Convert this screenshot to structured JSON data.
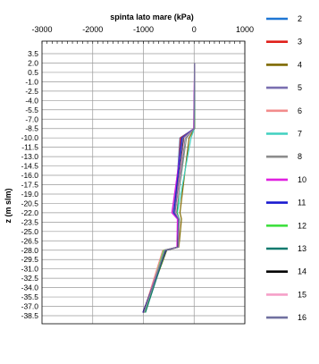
{
  "chart_data": {
    "type": "line",
    "title": "spinta lato mare (kPa)",
    "xlabel": "spinta lato mare (kPa)",
    "ylabel": "z   (m slm)",
    "xlim": [
      -3000,
      1000
    ],
    "ylim": [
      -38.5,
      3.5
    ],
    "x_axis_position": "top",
    "y_inverted": true,
    "grid": true,
    "x_ticks": [
      -3000,
      -2000,
      -1000,
      0,
      1000
    ],
    "x_tick_labels": [
      "-3000",
      "-2000",
      "-1000",
      "0",
      "1000"
    ],
    "y_ticks": [
      3.5,
      2.0,
      0.5,
      -1.0,
      -2.5,
      -4.0,
      -5.5,
      -7.0,
      -8.5,
      -10.0,
      -11.5,
      -13.0,
      -14.5,
      -16.0,
      -17.5,
      -19.0,
      -20.5,
      -22.0,
      -23.5,
      -25.0,
      -26.5,
      -28.0,
      -29.5,
      -31.0,
      -32.5,
      -34.0,
      -35.5,
      -37.0,
      -38.5
    ],
    "y_tick_labels": [
      "3.5",
      "2.0",
      "0.5",
      "-1.0",
      "-2.5",
      "-4.0",
      "-5.5",
      "-7.0",
      "-8.5",
      "-10.0",
      "-11.5",
      "-13.0",
      "-14.5",
      "-16.0",
      "-17.5",
      "-19.0",
      "-20.5",
      "-22.0",
      "-23.5",
      "-25.0",
      "-26.5",
      "-28.0",
      "-29.5",
      "-31.0",
      "-32.5",
      "-34.0",
      "-35.5",
      "-37.0",
      "-38.5"
    ],
    "legend_position": "right",
    "series": [
      {
        "name": "2",
        "color": "#1f77d4",
        "points": [
          [
            10,
            2.0
          ],
          [
            0,
            -8.5
          ],
          [
            -280,
            -10.0
          ],
          [
            -380,
            -22.0
          ],
          [
            -300,
            -23.0
          ],
          [
            -320,
            -27.5
          ],
          [
            -550,
            -28.0
          ],
          [
            -1000,
            -38.0
          ]
        ]
      },
      {
        "name": "3",
        "color": "#e0201b",
        "points": [
          [
            10,
            2.0
          ],
          [
            5,
            -8.5
          ],
          [
            -270,
            -10.0
          ],
          [
            -370,
            -22.0
          ],
          [
            -290,
            -23.0
          ],
          [
            -310,
            -27.5
          ],
          [
            -560,
            -28.0
          ],
          [
            -1010,
            -38.0
          ]
        ]
      },
      {
        "name": "4",
        "color": "#7f6a00",
        "points": [
          [
            10,
            2.0
          ],
          [
            10,
            -8.5
          ],
          [
            -100,
            -10.0
          ],
          [
            -280,
            -22.0
          ],
          [
            -250,
            -23.0
          ],
          [
            -300,
            -27.5
          ],
          [
            -540,
            -28.0
          ],
          [
            -990,
            -38.0
          ]
        ]
      },
      {
        "name": "5",
        "color": "#7a6fb0",
        "points": [
          [
            10,
            2.0
          ],
          [
            -5,
            -8.5
          ],
          [
            -250,
            -10.0
          ],
          [
            -420,
            -22.0
          ],
          [
            -320,
            -23.0
          ],
          [
            -330,
            -27.5
          ],
          [
            -560,
            -28.0
          ],
          [
            -1000,
            -38.0
          ]
        ]
      },
      {
        "name": "6",
        "color": "#f28c8c",
        "points": [
          [
            10,
            2.0
          ],
          [
            0,
            -8.5
          ],
          [
            -200,
            -10.0
          ],
          [
            -350,
            -22.0
          ],
          [
            -300,
            -23.0
          ],
          [
            -310,
            -27.5
          ],
          [
            -620,
            -28.0
          ],
          [
            -1000,
            -38.0
          ]
        ]
      },
      {
        "name": "7",
        "color": "#40d0c0",
        "points": [
          [
            10,
            2.0
          ],
          [
            5,
            -8.5
          ],
          [
            -60,
            -10.0
          ],
          [
            -330,
            -22.0
          ],
          [
            -290,
            -23.0
          ],
          [
            -320,
            -27.5
          ],
          [
            -590,
            -28.0
          ],
          [
            -980,
            -38.0
          ]
        ]
      },
      {
        "name": "8",
        "color": "#8c8c8c",
        "points": [
          [
            10,
            2.0
          ],
          [
            0,
            -8.5
          ],
          [
            -150,
            -10.0
          ],
          [
            -360,
            -22.0
          ],
          [
            -300,
            -23.0
          ],
          [
            -330,
            -27.5
          ],
          [
            -570,
            -28.0
          ],
          [
            -990,
            -38.0
          ]
        ]
      },
      {
        "name": "10",
        "color": "#e020e0",
        "points": [
          [
            10,
            2.0
          ],
          [
            -10,
            -8.5
          ],
          [
            -230,
            -10.0
          ],
          [
            -440,
            -22.0
          ],
          [
            -330,
            -23.0
          ],
          [
            -340,
            -27.5
          ],
          [
            -580,
            -28.0
          ],
          [
            -1000,
            -38.0
          ]
        ]
      },
      {
        "name": "11",
        "color": "#1a1ad0",
        "points": [
          [
            10,
            2.0
          ],
          [
            0,
            -8.5
          ],
          [
            -240,
            -10.0
          ],
          [
            -400,
            -22.0
          ],
          [
            -310,
            -23.0
          ],
          [
            -320,
            -27.5
          ],
          [
            -550,
            -28.0
          ],
          [
            -1010,
            -38.0
          ]
        ]
      },
      {
        "name": "12",
        "color": "#40e040",
        "points": [
          [
            10,
            2.0
          ],
          [
            5,
            -8.5
          ],
          [
            -200,
            -10.0
          ],
          [
            -340,
            -22.0
          ],
          [
            -300,
            -23.0
          ],
          [
            -310,
            -27.5
          ],
          [
            -600,
            -28.0
          ],
          [
            -970,
            -38.0
          ]
        ]
      },
      {
        "name": "13",
        "color": "#0f7a6f",
        "points": [
          [
            10,
            2.0
          ],
          [
            5,
            -8.5
          ],
          [
            -180,
            -10.0
          ],
          [
            -350,
            -22.0
          ],
          [
            -300,
            -23.0
          ],
          [
            -320,
            -27.5
          ],
          [
            -560,
            -28.0
          ],
          [
            -960,
            -38.0
          ]
        ]
      },
      {
        "name": "14",
        "color": "#000000",
        "points": [
          [
            10,
            2.0
          ],
          [
            0,
            -8.5
          ],
          [
            -210,
            -10.0
          ],
          [
            -370,
            -22.0
          ],
          [
            -300,
            -23.0
          ],
          [
            -320,
            -27.5
          ],
          [
            -570,
            -28.0
          ],
          [
            -1000,
            -38.0
          ]
        ]
      },
      {
        "name": "15",
        "color": "#f5a0c8",
        "points": [
          [
            10,
            2.0
          ],
          [
            0,
            -8.5
          ],
          [
            -190,
            -10.0
          ],
          [
            -360,
            -22.0
          ],
          [
            -300,
            -23.0
          ],
          [
            -310,
            -27.5
          ],
          [
            -580,
            -28.0
          ],
          [
            -990,
            -38.0
          ]
        ]
      },
      {
        "name": "16",
        "color": "#7070a0",
        "points": [
          [
            10,
            2.0
          ],
          [
            0,
            -8.5
          ],
          [
            -220,
            -10.0
          ],
          [
            -380,
            -22.0
          ],
          [
            -305,
            -23.0
          ],
          [
            -315,
            -27.5
          ],
          [
            -575,
            -28.0
          ],
          [
            -995,
            -38.0
          ]
        ]
      }
    ]
  }
}
